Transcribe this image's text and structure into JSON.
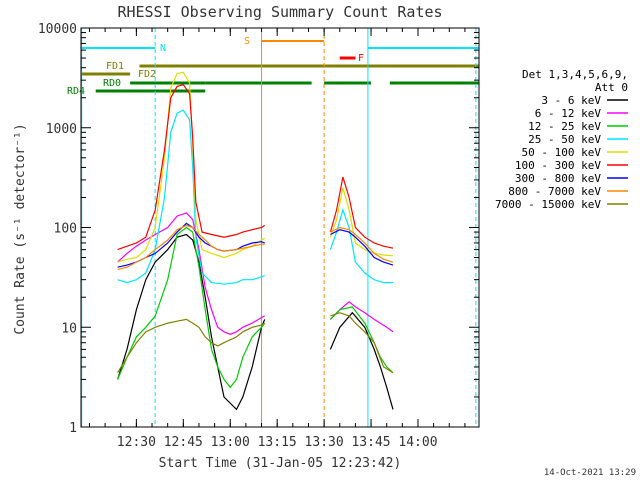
{
  "chart_data": {
    "type": "line",
    "title": "RHESSI Observing Summary Count Rates",
    "xlabel": "Start Time (31-Jan-05 12:23:42)",
    "ylabel": "Count Rate (s⁻¹ detector⁻¹)",
    "yscale": "log",
    "ylim": [
      1,
      10000
    ],
    "xlim_minutes": [
      12.3,
      139.5
    ],
    "x_ticks": [
      {
        "t": 30,
        "label": "12:30"
      },
      {
        "t": 45,
        "label": "12:45"
      },
      {
        "t": 60,
        "label": "13:00"
      },
      {
        "t": 75,
        "label": "13:15"
      },
      {
        "t": 90,
        "label": "13:30"
      },
      {
        "t": 105,
        "label": "13:45"
      },
      {
        "t": 120,
        "label": "14:00"
      }
    ],
    "y_ticks": [
      {
        "v": 1,
        "label": "1"
      },
      {
        "v": 10,
        "label": "10"
      },
      {
        "v": 100,
        "label": "100"
      },
      {
        "v": 1000,
        "label": "1000"
      },
      {
        "v": 10000,
        "label": "10000"
      }
    ],
    "legend_header": [
      "Det 1,3,4,5,6,9,",
      "Att 0"
    ],
    "legend_position": "right",
    "series": [
      {
        "name": "3 - 6 keV",
        "color": "#000000",
        "points": [
          [
            24,
            3
          ],
          [
            27,
            6
          ],
          [
            30,
            15
          ],
          [
            33,
            30
          ],
          [
            36,
            45
          ],
          [
            40,
            60
          ],
          [
            43,
            80
          ],
          [
            46,
            85
          ],
          [
            48,
            75
          ],
          [
            50,
            45
          ],
          [
            52,
            20
          ],
          [
            54,
            8
          ],
          [
            56,
            4
          ],
          [
            58,
            2
          ],
          [
            62,
            1.5
          ],
          [
            64,
            2
          ],
          [
            67,
            4
          ],
          [
            70,
            10
          ],
          [
            71,
            12
          ],
          null,
          [
            92,
            6
          ],
          [
            95,
            10
          ],
          [
            99,
            14
          ],
          [
            103,
            10
          ],
          [
            106,
            6
          ],
          [
            108,
            4
          ],
          [
            110,
            2.5
          ],
          [
            112,
            1.5
          ]
        ]
      },
      {
        "name": "6 - 12 keV",
        "color": "#ff00ff",
        "points": [
          [
            24,
            45
          ],
          [
            27,
            55
          ],
          [
            30,
            65
          ],
          [
            33,
            75
          ],
          [
            36,
            85
          ],
          [
            40,
            100
          ],
          [
            43,
            130
          ],
          [
            46,
            140
          ],
          [
            48,
            120
          ],
          [
            50,
            60
          ],
          [
            52,
            25
          ],
          [
            54,
            15
          ],
          [
            56,
            10
          ],
          [
            58,
            9
          ],
          [
            60,
            8.5
          ],
          [
            62,
            9
          ],
          [
            64,
            10
          ],
          [
            67,
            11
          ],
          [
            70,
            12.5
          ],
          [
            71,
            13
          ],
          null,
          [
            92,
            12
          ],
          [
            95,
            15
          ],
          [
            98,
            18
          ],
          [
            100,
            16
          ],
          [
            103,
            14
          ],
          [
            106,
            12
          ],
          [
            110,
            10
          ],
          [
            112,
            9
          ]
        ]
      },
      {
        "name": "12 - 25 keV",
        "color": "#00cc00",
        "points": [
          [
            24,
            3
          ],
          [
            27,
            5
          ],
          [
            30,
            8
          ],
          [
            33,
            10
          ],
          [
            36,
            13
          ],
          [
            40,
            30
          ],
          [
            43,
            85
          ],
          [
            46,
            100
          ],
          [
            48,
            90
          ],
          [
            50,
            40
          ],
          [
            52,
            15
          ],
          [
            54,
            6
          ],
          [
            56,
            4
          ],
          [
            58,
            3
          ],
          [
            60,
            2.5
          ],
          [
            62,
            3
          ],
          [
            64,
            5
          ],
          [
            67,
            8
          ],
          [
            70,
            10
          ],
          [
            71,
            11
          ],
          null,
          [
            92,
            12
          ],
          [
            95,
            15
          ],
          [
            99,
            16
          ],
          [
            103,
            11
          ],
          [
            106,
            7
          ],
          [
            108,
            5
          ],
          [
            110,
            4
          ],
          [
            112,
            3.5
          ]
        ]
      },
      {
        "name": "25 - 50 keV",
        "color": "#00e5ff",
        "points": [
          [
            24,
            30
          ],
          [
            27,
            28
          ],
          [
            30,
            30
          ],
          [
            33,
            35
          ],
          [
            36,
            60
          ],
          [
            39,
            200
          ],
          [
            41,
            900
          ],
          [
            43,
            1400
          ],
          [
            45,
            1500
          ],
          [
            47,
            1200
          ],
          [
            48,
            400
          ],
          [
            49,
            80
          ],
          [
            51,
            35
          ],
          [
            54,
            28
          ],
          [
            58,
            27
          ],
          [
            62,
            28
          ],
          [
            64,
            30
          ],
          [
            67,
            30
          ],
          [
            70,
            32
          ],
          [
            71,
            33
          ],
          null,
          [
            92,
            60
          ],
          [
            94,
            90
          ],
          [
            96,
            150
          ],
          [
            98,
            100
          ],
          [
            100,
            45
          ],
          [
            103,
            35
          ],
          [
            106,
            30
          ],
          [
            109,
            28
          ],
          [
            112,
            28
          ]
        ]
      },
      {
        "name": "50 - 100 keV",
        "color": "#dddd00",
        "points": [
          [
            24,
            45
          ],
          [
            27,
            48
          ],
          [
            30,
            50
          ],
          [
            33,
            60
          ],
          [
            36,
            100
          ],
          [
            39,
            500
          ],
          [
            41,
            2500
          ],
          [
            43,
            3500
          ],
          [
            45,
            3600
          ],
          [
            47,
            2800
          ],
          [
            48,
            700
          ],
          [
            49,
            120
          ],
          [
            51,
            60
          ],
          [
            54,
            55
          ],
          [
            58,
            50
          ],
          [
            62,
            55
          ],
          [
            64,
            60
          ],
          [
            67,
            65
          ],
          [
            70,
            75
          ],
          [
            71,
            78
          ],
          null,
          [
            92,
            80
          ],
          [
            94,
            120
          ],
          [
            96,
            250
          ],
          [
            98,
            150
          ],
          [
            100,
            70
          ],
          [
            103,
            60
          ],
          [
            106,
            55
          ],
          [
            109,
            53
          ],
          [
            112,
            52
          ]
        ]
      },
      {
        "name": "100 - 300 keV",
        "color": "#ff0000",
        "points": [
          [
            24,
            60
          ],
          [
            27,
            65
          ],
          [
            30,
            70
          ],
          [
            33,
            80
          ],
          [
            36,
            150
          ],
          [
            39,
            600
          ],
          [
            41,
            2000
          ],
          [
            43,
            2600
          ],
          [
            45,
            2700
          ],
          [
            47,
            2200
          ],
          [
            48,
            800
          ],
          [
            49,
            180
          ],
          [
            51,
            90
          ],
          [
            54,
            85
          ],
          [
            58,
            80
          ],
          [
            62,
            85
          ],
          [
            64,
            90
          ],
          [
            67,
            95
          ],
          [
            70,
            100
          ],
          [
            71,
            105
          ],
          null,
          [
            92,
            90
          ],
          [
            94,
            150
          ],
          [
            96,
            320
          ],
          [
            98,
            200
          ],
          [
            100,
            100
          ],
          [
            103,
            80
          ],
          [
            106,
            70
          ],
          [
            109,
            65
          ],
          [
            112,
            62
          ]
        ]
      },
      {
        "name": "300 - 800 keV",
        "color": "#0000ff",
        "points": [
          [
            24,
            40
          ],
          [
            27,
            42
          ],
          [
            30,
            45
          ],
          [
            33,
            50
          ],
          [
            36,
            55
          ],
          [
            40,
            70
          ],
          [
            43,
            90
          ],
          [
            46,
            110
          ],
          [
            48,
            100
          ],
          [
            50,
            80
          ],
          [
            52,
            70
          ],
          [
            54,
            65
          ],
          [
            56,
            60
          ],
          [
            58,
            58
          ],
          [
            62,
            60
          ],
          [
            64,
            65
          ],
          [
            67,
            70
          ],
          [
            70,
            72
          ],
          [
            71,
            70
          ],
          null,
          [
            92,
            85
          ],
          [
            95,
            95
          ],
          [
            98,
            90
          ],
          [
            100,
            80
          ],
          [
            103,
            65
          ],
          [
            106,
            50
          ],
          [
            109,
            45
          ],
          [
            112,
            42
          ]
        ]
      },
      {
        "name": "800 - 7000 keV",
        "color": "#ff8800",
        "points": [
          [
            24,
            38
          ],
          [
            27,
            40
          ],
          [
            30,
            45
          ],
          [
            33,
            50
          ],
          [
            36,
            60
          ],
          [
            40,
            75
          ],
          [
            43,
            95
          ],
          [
            46,
            105
          ],
          [
            48,
            100
          ],
          [
            50,
            85
          ],
          [
            52,
            75
          ],
          [
            54,
            65
          ],
          [
            56,
            60
          ],
          [
            58,
            58
          ],
          [
            62,
            60
          ],
          [
            64,
            62
          ],
          [
            67,
            65
          ],
          [
            70,
            68
          ],
          [
            71,
            68
          ],
          null,
          [
            92,
            90
          ],
          [
            95,
            100
          ],
          [
            98,
            95
          ],
          [
            100,
            85
          ],
          [
            103,
            70
          ],
          [
            106,
            55
          ],
          [
            109,
            48
          ],
          [
            112,
            45
          ]
        ]
      },
      {
        "name": "7000 - 15000 keV",
        "color": "#808000",
        "points": [
          [
            24,
            3.5
          ],
          [
            27,
            5
          ],
          [
            30,
            7
          ],
          [
            33,
            9
          ],
          [
            36,
            10
          ],
          [
            40,
            11
          ],
          [
            43,
            11.5
          ],
          [
            46,
            12
          ],
          [
            48,
            11
          ],
          [
            50,
            10
          ],
          [
            52,
            8
          ],
          [
            54,
            7
          ],
          [
            56,
            6.5
          ],
          [
            58,
            7
          ],
          [
            62,
            8
          ],
          [
            64,
            9
          ],
          [
            67,
            10
          ],
          [
            70,
            10.5
          ],
          [
            71,
            11
          ],
          null,
          [
            92,
            13
          ],
          [
            95,
            14
          ],
          [
            98,
            13
          ],
          [
            100,
            11
          ],
          [
            103,
            9
          ],
          [
            106,
            7
          ],
          [
            109,
            4
          ],
          [
            112,
            3.5
          ]
        ]
      }
    ],
    "markers": [
      {
        "label": "N",
        "color": "#00e5ff"
      },
      {
        "label": "S",
        "color": "#ff8800"
      },
      {
        "label": "F",
        "color": "#ff0000"
      },
      {
        "label": "FD1",
        "color": "#808000"
      },
      {
        "label": "FD2",
        "color": "#808000"
      },
      {
        "label": "RD0",
        "color": "#008000"
      },
      {
        "label": "RD4",
        "color": "#008000"
      }
    ],
    "footer_date": "14-Oct-2021 13:29"
  }
}
